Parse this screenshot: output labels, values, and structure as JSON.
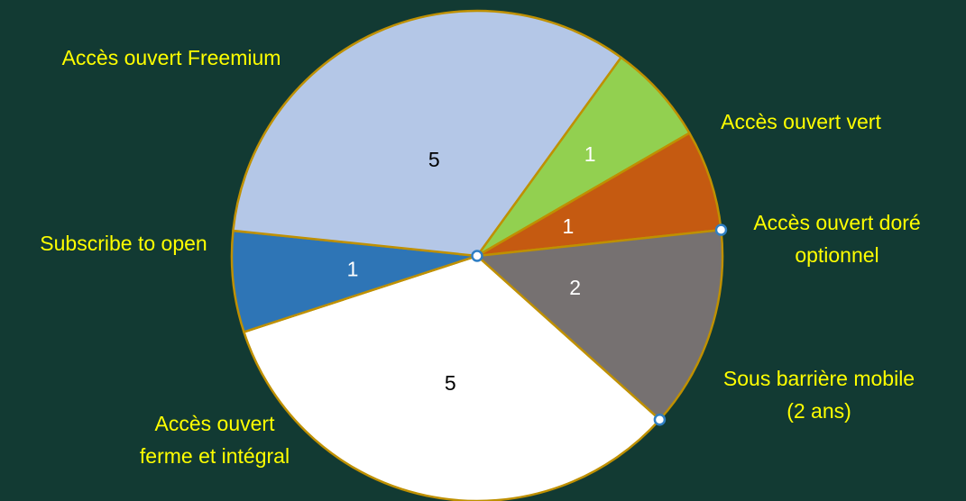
{
  "chart_data": {
    "type": "pie",
    "title": "",
    "categories": [
      "Accès ouvert vert",
      "Accès ouvert doré optionnel",
      "Sous barrière mobile (2 ans)",
      "Accès ouvert ferme et intégral",
      "Subscribe to open",
      "Accès ouvert Freemium"
    ],
    "label_lines": [
      [
        "Accès ouvert vert"
      ],
      [
        "Accès ouvert doré",
        "optionnel"
      ],
      [
        "Sous barrière mobile",
        "(2 ans)"
      ],
      [
        "Accès ouvert",
        "ferme et intégral"
      ],
      [
        "Subscribe to open"
      ],
      [
        "Accès ouvert Freemium"
      ]
    ],
    "values": [
      1,
      1,
      2,
      5,
      1,
      5
    ],
    "colors": [
      "#92d050",
      "#c55a11",
      "#767171",
      "#ffffff",
      "#2e75b6",
      "#b4c7e7"
    ],
    "value_label_colors": [
      "#ffffff",
      "#ffffff",
      "#ffffff",
      "#000000",
      "#ffffff",
      "#000000"
    ],
    "border_color": "#bf9000",
    "label_color": "#ffff00",
    "legend": "none"
  }
}
